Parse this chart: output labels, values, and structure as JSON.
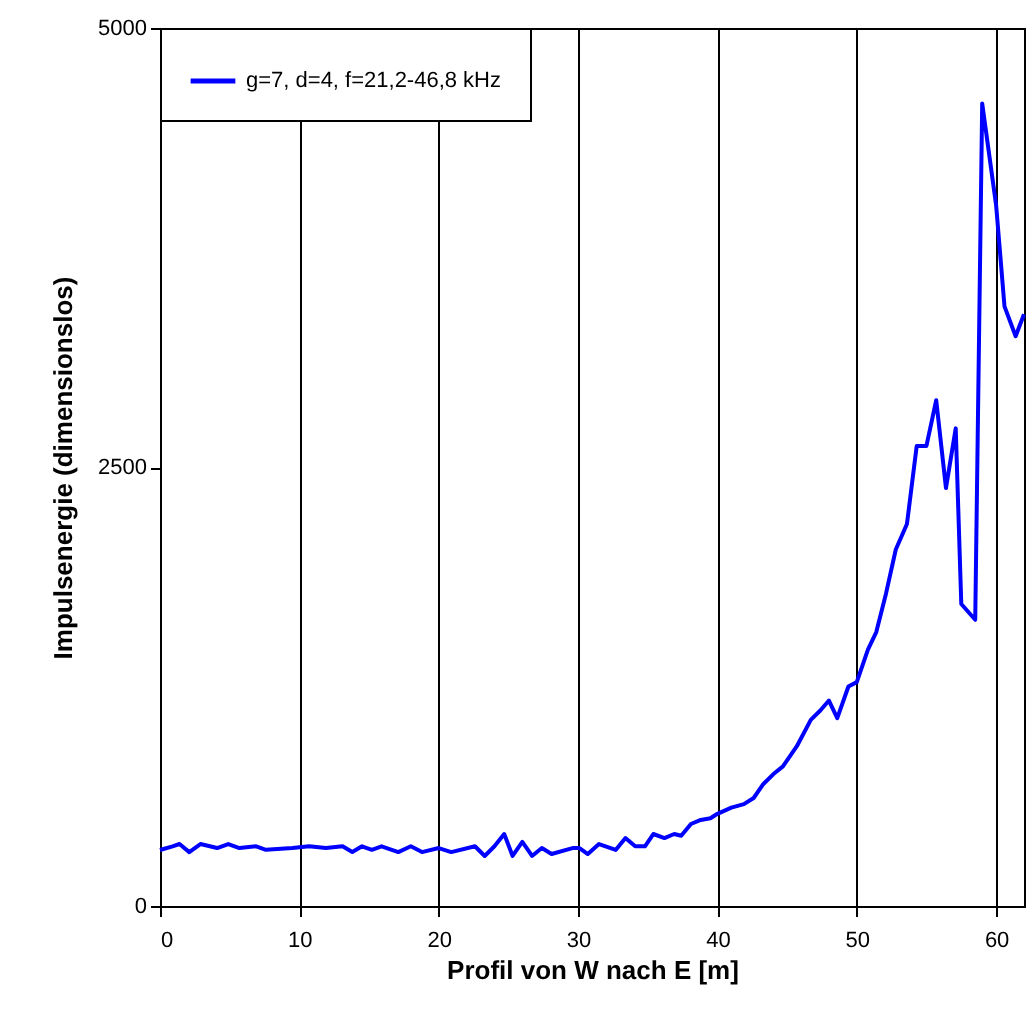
{
  "chart_data": {
    "type": "line",
    "xlabel": "Profil von W nach E [m]",
    "ylabel": "Impulsenergie (dimensionslos)",
    "xlim": [
      0,
      62
    ],
    "ylim": [
      0,
      5000
    ],
    "xticks": [
      0,
      10,
      20,
      30,
      40,
      50,
      60
    ],
    "yticks": [
      0,
      2500,
      5000
    ],
    "grid": "x",
    "legend": "top left",
    "marker": "none",
    "line_style": "solid",
    "series": [
      {
        "name": "g=7, d=4, f=21,2-46,8 kHz",
        "color": "#0000ff",
        "x": [
          0,
          0.9,
          1.4,
          2.1,
          2.9,
          4.1,
          4.9,
          5.7,
          6.9,
          7.6,
          9.5,
          10.7,
          11.9,
          13.1,
          13.8,
          14.5,
          15.2,
          15.9,
          17.1,
          18,
          18.8,
          20,
          20.9,
          22.6,
          23.3,
          24,
          24.7,
          25.3,
          26,
          26.7,
          27.4,
          28.1,
          29.6,
          30.1,
          30.7,
          31.5,
          32.7,
          33.4,
          34.1,
          34.8,
          35.4,
          36.2,
          36.9,
          37.4,
          38.1,
          38.8,
          39.5,
          40,
          41,
          41.9,
          42.6,
          43.3,
          44,
          44.7,
          45.7,
          46.7,
          47.4,
          48,
          48.6,
          49.4,
          50,
          50.8,
          51.4,
          52.1,
          52.8,
          53.6,
          54.3,
          55,
          55.7,
          56.4,
          57.1,
          57.5,
          58.5,
          59,
          60,
          60.6,
          61.4,
          62
        ],
        "values": [
          319,
          340,
          353,
          307,
          353,
          330,
          353,
          330,
          340,
          320,
          330,
          340,
          330,
          340,
          307,
          340,
          320,
          340,
          307,
          340,
          307,
          330,
          307,
          340,
          285,
          340,
          410,
          285,
          365,
          285,
          330,
          296,
          330,
          330,
          296,
          353,
          319,
          387,
          340,
          340,
          410,
          387,
          410,
          400,
          467,
          490,
          500,
          525,
          560,
          580,
          615,
          695,
          750,
          795,
          910,
          1060,
          1115,
          1170,
          1070,
          1250,
          1275,
          1460,
          1560,
          1780,
          2030,
          2175,
          2620,
          2620,
          2880,
          2380,
          2720,
          1720,
          1630,
          4570,
          3990,
          3415,
          3245,
          3370
        ]
      }
    ]
  }
}
